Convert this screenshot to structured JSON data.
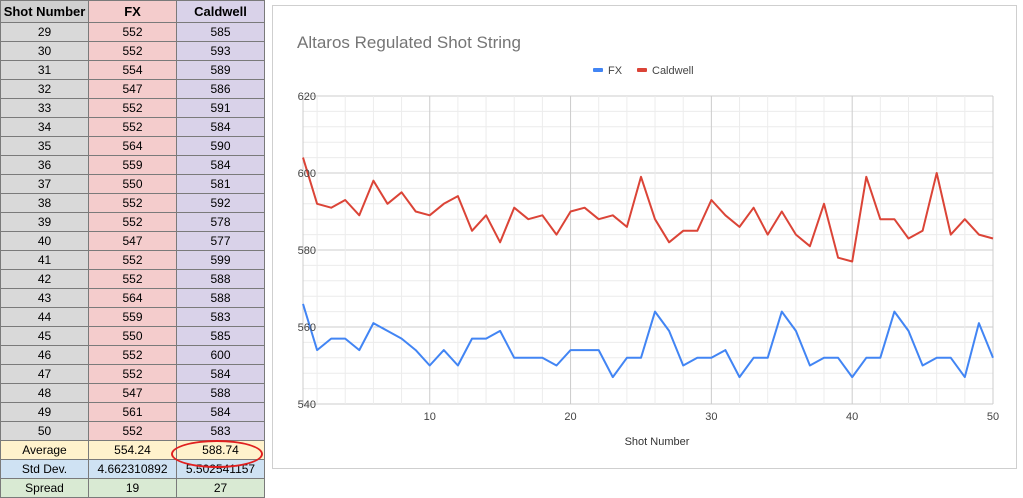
{
  "sheet": {
    "headers": [
      "Shot Number",
      "FX",
      "Caldwell"
    ],
    "rows": [
      [
        "29",
        "552",
        "585"
      ],
      [
        "30",
        "552",
        "593"
      ],
      [
        "31",
        "554",
        "589"
      ],
      [
        "32",
        "547",
        "586"
      ],
      [
        "33",
        "552",
        "591"
      ],
      [
        "34",
        "552",
        "584"
      ],
      [
        "35",
        "564",
        "590"
      ],
      [
        "36",
        "559",
        "584"
      ],
      [
        "37",
        "550",
        "581"
      ],
      [
        "38",
        "552",
        "592"
      ],
      [
        "39",
        "552",
        "578"
      ],
      [
        "40",
        "547",
        "577"
      ],
      [
        "41",
        "552",
        "599"
      ],
      [
        "42",
        "552",
        "588"
      ],
      [
        "43",
        "564",
        "588"
      ],
      [
        "44",
        "559",
        "583"
      ],
      [
        "45",
        "550",
        "585"
      ],
      [
        "46",
        "552",
        "600"
      ],
      [
        "47",
        "552",
        "584"
      ],
      [
        "48",
        "547",
        "588"
      ],
      [
        "49",
        "561",
        "584"
      ],
      [
        "50",
        "552",
        "583"
      ]
    ],
    "stats": [
      [
        "Average",
        "554.24",
        "588.74"
      ],
      [
        "Std Dev.",
        "4.662310892",
        "5.502541157"
      ],
      [
        "Spread",
        "19",
        "27"
      ]
    ]
  },
  "chart": {
    "title": "Altaros Regulated Shot String",
    "legend": [
      "FX",
      "Caldwell"
    ]
  },
  "chart_data": {
    "type": "line",
    "title": "Altaros Regulated Shot String",
    "xlabel": "Shot Number",
    "ylabel": "",
    "x": [
      1,
      2,
      3,
      4,
      5,
      6,
      7,
      8,
      9,
      10,
      11,
      12,
      13,
      14,
      15,
      16,
      17,
      18,
      19,
      20,
      21,
      22,
      23,
      24,
      25,
      26,
      27,
      28,
      29,
      30,
      31,
      32,
      33,
      34,
      35,
      36,
      37,
      38,
      39,
      40,
      41,
      42,
      43,
      44,
      45,
      46,
      47,
      48,
      49,
      50
    ],
    "xlim": [
      1,
      50
    ],
    "xticks": [
      "10",
      "20",
      "30",
      "40",
      "50"
    ],
    "ylim": [
      540,
      620
    ],
    "yticks": [
      "540",
      "560",
      "580",
      "600",
      "620"
    ],
    "grid": true,
    "legend_position": "top",
    "series": [
      {
        "name": "FX",
        "color": "#4285f4",
        "values": [
          566,
          554,
          557,
          557,
          554,
          561,
          559,
          557,
          554,
          550,
          554,
          550,
          557,
          557,
          559,
          552,
          552,
          552,
          550,
          554,
          554,
          554,
          547,
          552,
          552,
          564,
          559,
          550,
          552,
          552,
          554,
          547,
          552,
          552,
          564,
          559,
          550,
          552,
          552,
          547,
          552,
          552,
          564,
          559,
          550,
          552,
          552,
          547,
          561,
          552
        ]
      },
      {
        "name": "Caldwell",
        "color": "#db4437",
        "values": [
          604,
          592,
          591,
          593,
          589,
          598,
          592,
          595,
          590,
          589,
          592,
          594,
          585,
          589,
          582,
          591,
          588,
          589,
          584,
          590,
          591,
          588,
          589,
          586,
          599,
          588,
          582,
          585,
          585,
          593,
          589,
          586,
          591,
          584,
          590,
          584,
          581,
          592,
          578,
          577,
          599,
          588,
          588,
          583,
          585,
          600,
          584,
          588,
          584,
          583
        ]
      }
    ]
  }
}
